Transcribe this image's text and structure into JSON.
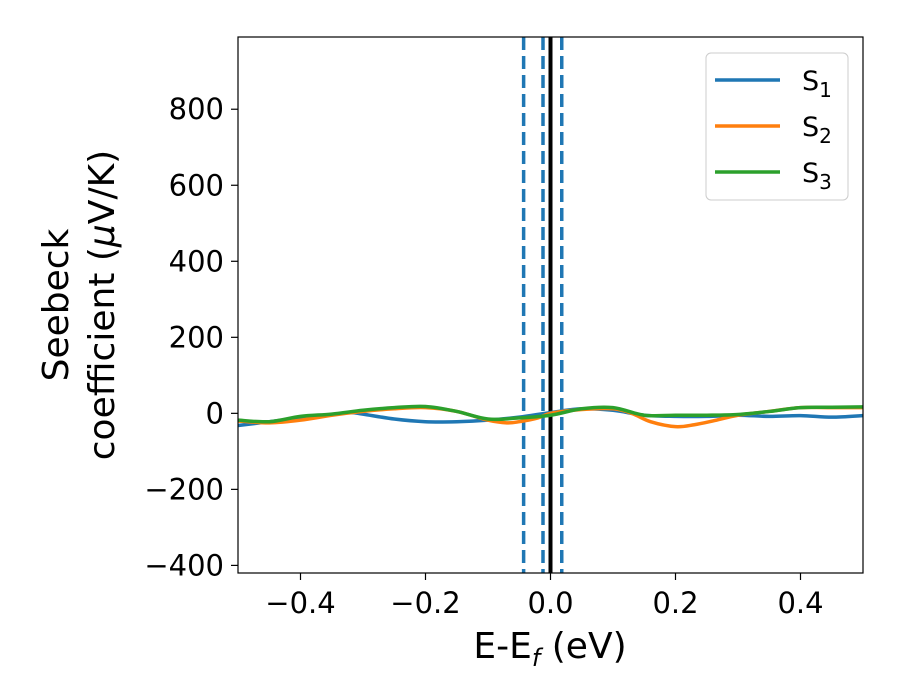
{
  "chart_data": {
    "type": "line",
    "title": "",
    "xlabel": "E-E",
    "xlabel_sub": "f",
    "xlabel_unit": " (eV)",
    "ylabel_line1": "Seebeck",
    "ylabel_line2": "coefficient  (",
    "ylabel_mu": "μ",
    "ylabel_unit": "V/K)",
    "xlim": [
      -0.5,
      0.5
    ],
    "ylim": [
      -420,
      990
    ],
    "x_ticks": [
      -0.4,
      -0.2,
      0.0,
      0.2,
      0.4
    ],
    "x_tick_labels": [
      "−0.4",
      "−0.2",
      "0.0",
      "0.2",
      "0.4"
    ],
    "y_ticks": [
      -400,
      -200,
      0,
      200,
      400,
      600,
      800
    ],
    "y_tick_labels": [
      "−400",
      "−200",
      "0",
      "200",
      "400",
      "600",
      "800"
    ],
    "grid": false,
    "legend_position": "top-right",
    "series": [
      {
        "name": "S",
        "name_sub": "1",
        "color": "#1f77b4",
        "x": [
          -0.5,
          -0.45,
          -0.4,
          -0.35,
          -0.32,
          -0.3,
          -0.25,
          -0.2,
          -0.15,
          -0.1,
          -0.05,
          0.0,
          0.05,
          0.1,
          0.15,
          0.2,
          0.25,
          0.3,
          0.35,
          0.4,
          0.45,
          0.5
        ],
        "values": [
          -32,
          -22,
          -12,
          -3,
          2,
          -2,
          -15,
          -22,
          -22,
          -18,
          -10,
          2,
          12,
          8,
          -5,
          -8,
          -8,
          -5,
          -8,
          -6,
          -10,
          -6
        ]
      },
      {
        "name": "S",
        "name_sub": "2",
        "color": "#ff7f0e",
        "x": [
          -0.5,
          -0.45,
          -0.4,
          -0.35,
          -0.3,
          -0.25,
          -0.2,
          -0.15,
          -0.1,
          -0.07,
          -0.05,
          -0.02,
          0.0,
          0.05,
          0.1,
          0.13,
          0.16,
          0.2,
          0.23,
          0.26,
          0.3,
          0.35,
          0.4,
          0.45,
          0.5
        ],
        "values": [
          -20,
          -25,
          -18,
          -5,
          5,
          12,
          15,
          5,
          -18,
          -25,
          -22,
          -12,
          0,
          10,
          12,
          0,
          -22,
          -35,
          -30,
          -20,
          -5,
          5,
          15,
          15,
          15
        ]
      },
      {
        "name": "S",
        "name_sub": "3",
        "color": "#2ca02c",
        "x": [
          -0.5,
          -0.45,
          -0.4,
          -0.35,
          -0.3,
          -0.25,
          -0.2,
          -0.15,
          -0.1,
          -0.05,
          0.0,
          0.05,
          0.1,
          0.15,
          0.2,
          0.25,
          0.3,
          0.35,
          0.4,
          0.45,
          0.5
        ],
        "values": [
          -18,
          -22,
          -8,
          -2,
          8,
          15,
          18,
          5,
          -15,
          -12,
          -5,
          12,
          15,
          -5,
          -5,
          -5,
          -3,
          5,
          15,
          16,
          17
        ]
      }
    ],
    "vertical_lines": [
      {
        "x": -0.043,
        "style": "dashed",
        "color": "#1f77b4"
      },
      {
        "x": -0.012,
        "style": "dashed",
        "color": "#1f77b4"
      },
      {
        "x": 0.018,
        "style": "dashed",
        "color": "#1f77b4"
      },
      {
        "x": 0.0,
        "style": "solid",
        "color": "#000000"
      }
    ]
  }
}
